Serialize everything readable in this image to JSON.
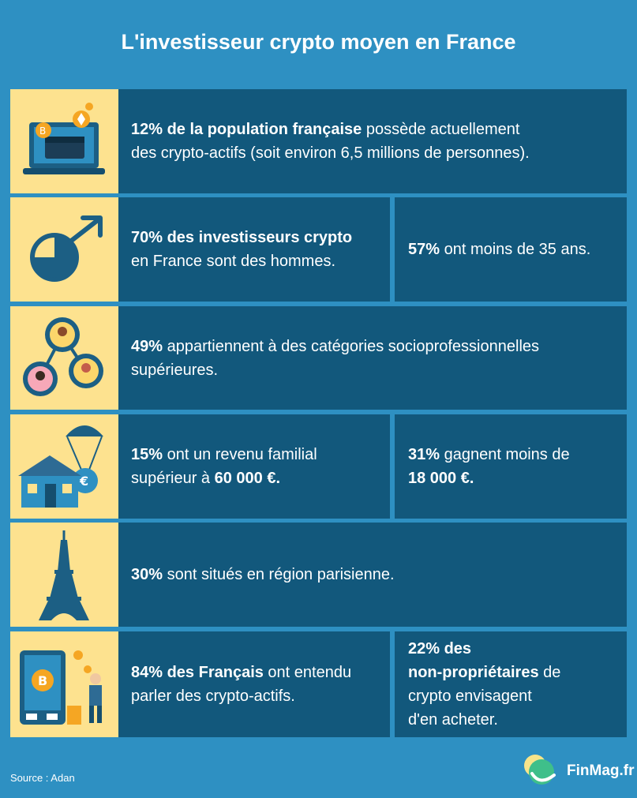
{
  "title": "L'investisseur crypto moyen en France",
  "rows": [
    {
      "icon": "laptop-crypto-wallet-icon",
      "full": {
        "strong": "12% de la population française",
        "rest_1": " possède actuellement",
        "rest_2": "des crypto-actifs (soit environ 6,5 millions de personnes)."
      }
    },
    {
      "icon": "male-symbol-pie-icon",
      "left": {
        "strong": "70% des investisseurs crypto",
        "rest": "en France sont des hommes."
      },
      "right": {
        "strong": "57%",
        "rest": " ont moins de 35 ans."
      }
    },
    {
      "icon": "people-gears-network-icon",
      "full": {
        "strong": "49%",
        "rest_1": " appartiennent à des catégories socioprofessionnelles",
        "rest_2": "supérieures."
      }
    },
    {
      "icon": "house-money-parachute-icon",
      "left": {
        "strong": "15%",
        "rest_1": " ont un revenu familial",
        "rest_2": "supérieur à ",
        "strong_2": "60 000 €."
      },
      "right": {
        "strong": "31%",
        "rest_1": " gagnent moins de",
        "strong_2": "18 000 €."
      }
    },
    {
      "icon": "eiffel-tower-icon",
      "full": {
        "strong": "30%",
        "rest_1": " sont situés en région parisienne."
      }
    },
    {
      "icon": "bitcoin-atm-miner-icon",
      "left": {
        "strong": "84% des Français",
        "rest_1": " ont entendu",
        "rest_2": "parler des crypto-actifs."
      },
      "right": {
        "strong_1": "22% des",
        "strong_2": "non-propriétaires",
        "rest_1": " de",
        "rest_2": "crypto envisagent",
        "rest_3": "d'en acheter."
      }
    }
  ],
  "footer": {
    "source": "Source : Adan",
    "brand": "FinMag.fr"
  },
  "colors": {
    "background": "#2e90c2",
    "panel": "#12587c",
    "icon_bg": "#fde28f"
  }
}
